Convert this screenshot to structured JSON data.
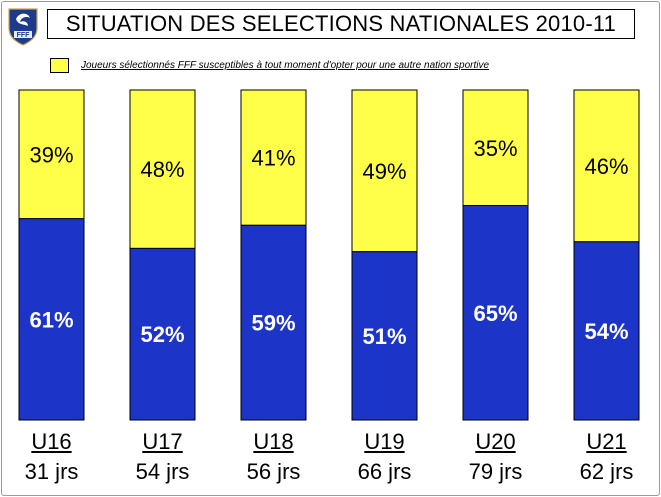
{
  "colors": {
    "top_fill": "#ffff4a",
    "bottom_fill": "#1d34c9",
    "bar_border": "#000000",
    "top_text": "#000000",
    "bottom_text": "#ffffff"
  },
  "logo": {
    "icon": "fff-rooster-shield-icon",
    "text": "FFF"
  },
  "chart_data": {
    "type": "bar",
    "stacked": true,
    "normalized": true,
    "title": "SITUATION DES SELECTIONS NATIONALES 2010-11",
    "legend": {
      "placement": "top-left",
      "entries": [
        "Joueurs sélectionnés FFF susceptibles à tout moment d'opter pour une autre nation sportive"
      ]
    },
    "categories": [
      "U16",
      "U17",
      "U18",
      "U19",
      "U20",
      "U21"
    ],
    "sublabels": [
      "31 jrs",
      "54 jrs",
      "56 jrs",
      "66 jrs",
      "79 jrs",
      "62 jrs"
    ],
    "series": [
      {
        "name": "Joueurs sélectionnés FFF susceptibles à tout moment d'opter pour une autre nation sportive",
        "values": [
          39,
          48,
          41,
          49,
          35,
          46
        ],
        "labels": [
          "39%",
          "48%",
          "41%",
          "49%",
          "35%",
          "46%"
        ]
      },
      {
        "values": [
          61,
          52,
          59,
          51,
          65,
          54
        ],
        "labels": [
          "61%",
          "52%",
          "59%",
          "51%",
          "65%",
          "54%"
        ]
      }
    ],
    "ylim": [
      0,
      100
    ],
    "grid": false
  }
}
